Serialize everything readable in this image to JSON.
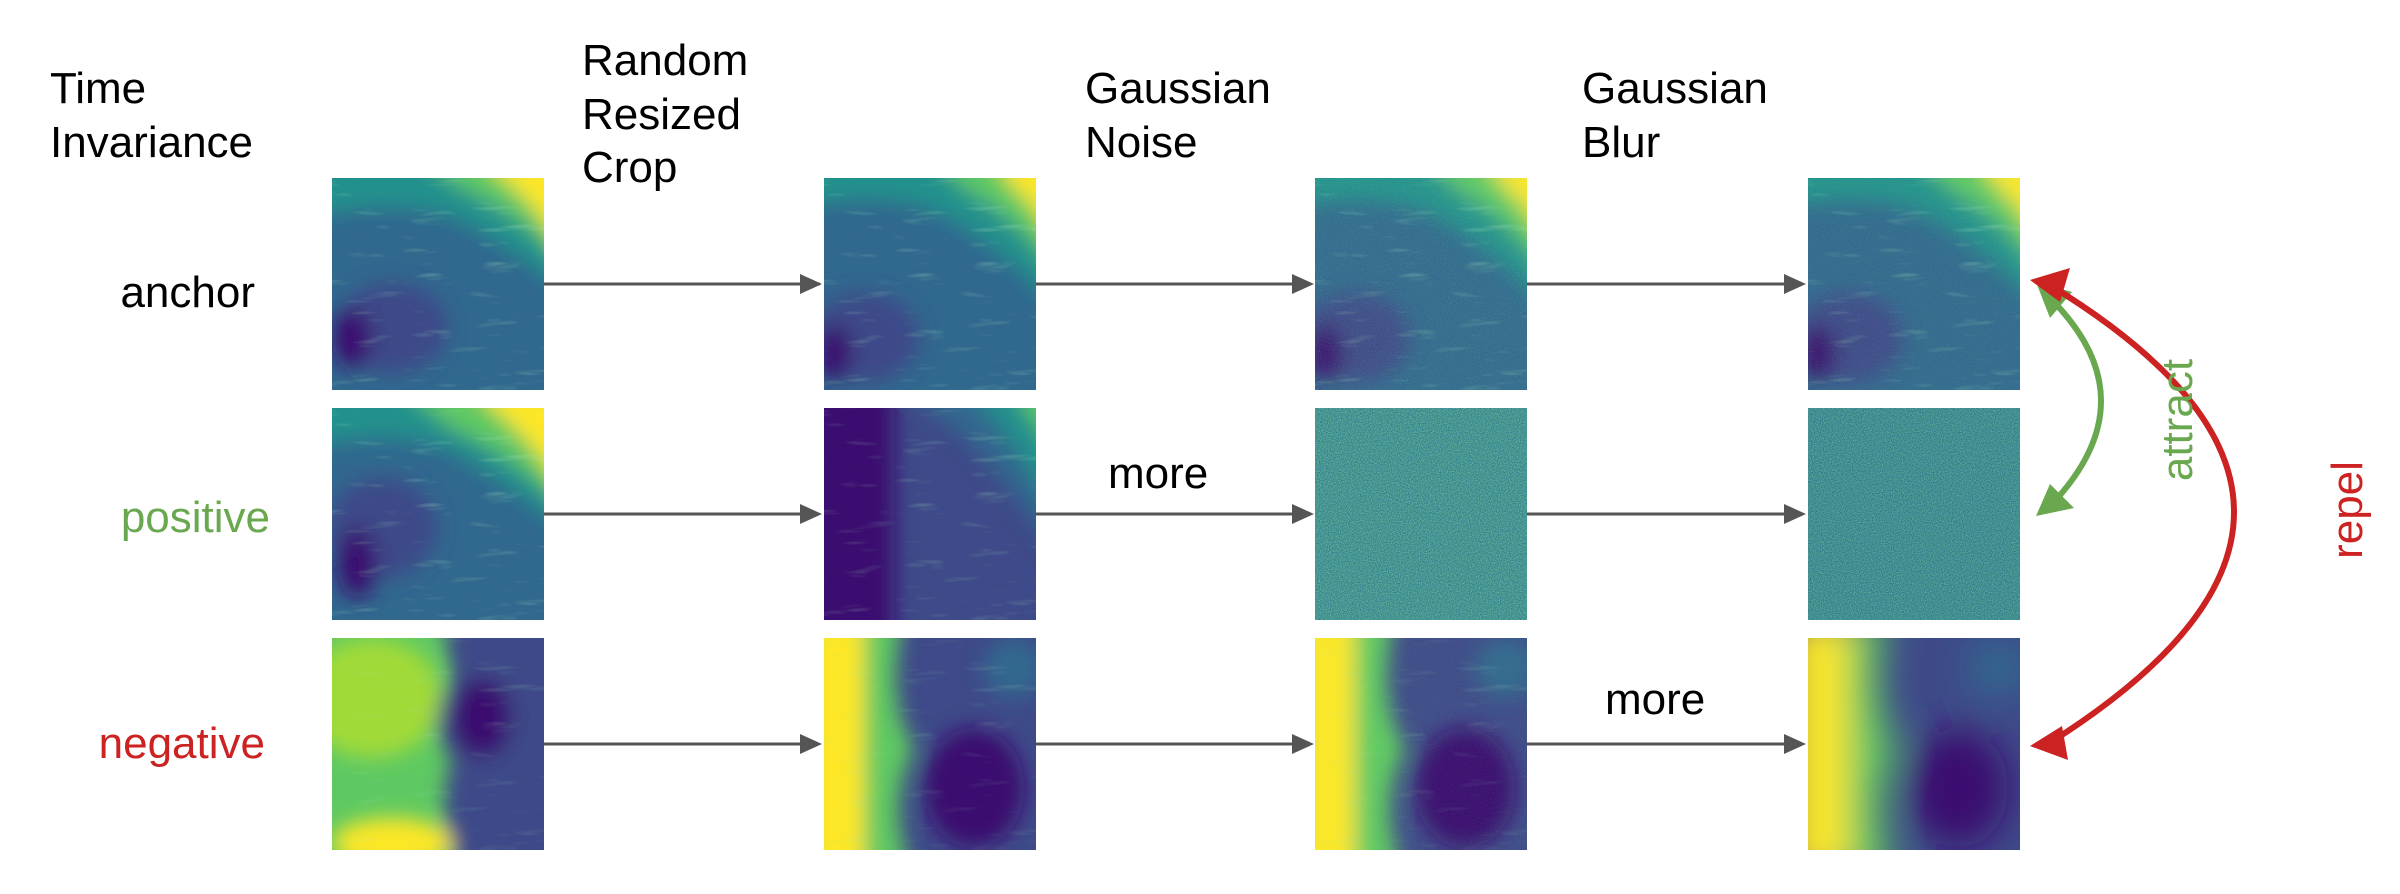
{
  "header": {
    "title": "Time\nInvariance",
    "steps": [
      "Random\nResized\nCrop",
      "Gaussian\nNoise",
      "Gaussian\nBlur"
    ]
  },
  "rows": [
    {
      "label": "anchor",
      "color": "#000000",
      "note": ""
    },
    {
      "label": "positive",
      "color": "#6aa84f",
      "note": "more"
    },
    {
      "label": "negative",
      "color": "#cc2222",
      "note": "more"
    }
  ],
  "relations": {
    "attract": {
      "label": "attract",
      "color": "#6aa84f"
    },
    "repel": {
      "label": "repel",
      "color": "#cc2222"
    }
  },
  "palette": {
    "dark": "#3b0f70",
    "blue": "#31688e",
    "teal": "#21918c",
    "green": "#5ec962",
    "yellow": "#fde725",
    "arrow_gray": "#555555"
  }
}
